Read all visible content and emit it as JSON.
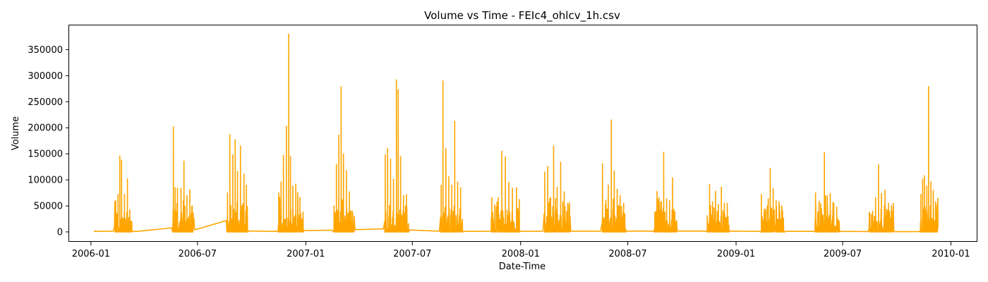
{
  "chart_data": {
    "type": "line",
    "title": "Volume vs Time - FEIc4_ohlcv_1h.csv",
    "xlabel": "Date-Time",
    "ylabel": "Volume",
    "series_color": "#ffa500",
    "grid": false,
    "legend": "none",
    "xlim": [
      "2005-11-25",
      "2010-02-15"
    ],
    "ylim": [
      -19000,
      398000
    ],
    "x_ticks": [
      "2006-01",
      "2006-07",
      "2007-01",
      "2007-07",
      "2008-01",
      "2008-07",
      "2009-01",
      "2009-07",
      "2010-01"
    ],
    "y_ticks": [
      0,
      50000,
      100000,
      150000,
      200000,
      250000,
      300000,
      350000
    ],
    "baseline": [
      [
        "2006-01-06",
        1000
      ],
      [
        "2006-02-20",
        1500
      ],
      [
        "2006-03-20",
        1000
      ],
      [
        "2006-05-20",
        8000
      ],
      [
        "2006-06-20",
        2000
      ],
      [
        "2006-08-20",
        22000
      ],
      [
        "2006-09-20",
        2000
      ],
      [
        "2006-11-01",
        1000
      ],
      [
        "2006-12-20",
        2500
      ],
      [
        "2007-03-01",
        3500
      ],
      [
        "2007-05-15",
        6000
      ],
      [
        "2007-06-20",
        4000
      ],
      [
        "2007-08-25",
        1000
      ],
      [
        "2008-06-01",
        1500
      ],
      [
        "2008-12-15",
        1500
      ],
      [
        "2009-03-01",
        1000
      ],
      [
        "2009-06-01",
        1000
      ],
      [
        "2009-11-01",
        500
      ],
      [
        "2009-11-25",
        2500
      ],
      [
        "2009-12-10",
        1500
      ]
    ],
    "bursts": [
      {
        "start": "2006-02-10",
        "end": "2006-03-12",
        "peaks": [
          [
            "2006-02-12",
            60000
          ],
          [
            "2006-02-16",
            72000
          ],
          [
            "2006-02-19",
            146000
          ],
          [
            "2006-02-22",
            138000
          ],
          [
            "2006-02-27",
            72000
          ],
          [
            "2006-03-04",
            102000
          ],
          [
            "2006-03-08",
            42000
          ]
        ]
      },
      {
        "start": "2006-05-20",
        "end": "2006-06-25",
        "peaks": [
          [
            "2006-05-21",
            202000
          ],
          [
            "2006-05-24",
            85000
          ],
          [
            "2006-05-28",
            84000
          ],
          [
            "2006-06-03",
            84000
          ],
          [
            "2006-06-08",
            136000
          ],
          [
            "2006-06-13",
            70000
          ],
          [
            "2006-06-18",
            81000
          ],
          [
            "2006-06-22",
            50000
          ]
        ]
      },
      {
        "start": "2006-08-20",
        "end": "2006-09-25",
        "peaks": [
          [
            "2006-08-21",
            75000
          ],
          [
            "2006-08-25",
            187000
          ],
          [
            "2006-08-30",
            148000
          ],
          [
            "2006-09-03",
            177000
          ],
          [
            "2006-09-07",
            116000
          ],
          [
            "2006-09-12",
            165000
          ],
          [
            "2006-09-18",
            111000
          ],
          [
            "2006-09-22",
            90000
          ]
        ]
      },
      {
        "start": "2006-11-15",
        "end": "2006-12-28",
        "peaks": [
          [
            "2006-11-16",
            75000
          ],
          [
            "2006-11-20",
            96000
          ],
          [
            "2006-11-24",
            147000
          ],
          [
            "2006-11-29",
            203000
          ],
          [
            "2006-12-03",
            380000
          ],
          [
            "2006-12-06",
            145000
          ],
          [
            "2006-12-10",
            88000
          ],
          [
            "2006-12-15",
            92000
          ],
          [
            "2006-12-22",
            66000
          ]
        ]
      },
      {
        "start": "2007-02-17",
        "end": "2007-03-25",
        "peaks": [
          [
            "2007-02-18",
            50000
          ],
          [
            "2007-02-22",
            130000
          ],
          [
            "2007-02-26",
            186000
          ],
          [
            "2007-03-02",
            279000
          ],
          [
            "2007-03-06",
            150000
          ],
          [
            "2007-03-11",
            118000
          ],
          [
            "2007-03-16",
            77000
          ],
          [
            "2007-03-21",
            40000
          ]
        ]
      },
      {
        "start": "2007-05-15",
        "end": "2007-06-25",
        "peaks": [
          [
            "2007-05-16",
            148000
          ],
          [
            "2007-05-20",
            160000
          ],
          [
            "2007-05-25",
            140000
          ],
          [
            "2007-05-30",
            101000
          ],
          [
            "2007-06-04",
            292000
          ],
          [
            "2007-06-07",
            273000
          ],
          [
            "2007-06-11",
            145000
          ],
          [
            "2007-06-16",
            70000
          ],
          [
            "2007-06-21",
            72000
          ]
        ]
      },
      {
        "start": "2007-08-18",
        "end": "2007-09-25",
        "peaks": [
          [
            "2007-08-19",
            90000
          ],
          [
            "2007-08-22",
            290000
          ],
          [
            "2007-08-27",
            160000
          ],
          [
            "2007-09-01",
            106000
          ],
          [
            "2007-09-06",
            90000
          ],
          [
            "2007-09-11",
            213000
          ],
          [
            "2007-09-16",
            96000
          ],
          [
            "2007-09-21",
            85000
          ]
        ]
      },
      {
        "start": "2007-11-12",
        "end": "2007-12-30",
        "peaks": [
          [
            "2007-11-13",
            66000
          ],
          [
            "2007-11-18",
            52000
          ],
          [
            "2007-11-24",
            66000
          ],
          [
            "2007-11-30",
            155000
          ],
          [
            "2007-12-06",
            144000
          ],
          [
            "2007-12-12",
            95000
          ],
          [
            "2007-12-18",
            84000
          ],
          [
            "2007-12-25",
            85000
          ]
        ]
      },
      {
        "start": "2008-02-10",
        "end": "2008-03-25",
        "peaks": [
          [
            "2008-02-11",
            115000
          ],
          [
            "2008-02-16",
            126000
          ],
          [
            "2008-02-21",
            66000
          ],
          [
            "2008-02-26",
            165000
          ],
          [
            "2008-03-03",
            86000
          ],
          [
            "2008-03-09",
            134000
          ],
          [
            "2008-03-15",
            77000
          ],
          [
            "2008-03-21",
            55000
          ]
        ]
      },
      {
        "start": "2008-05-18",
        "end": "2008-06-28",
        "peaks": [
          [
            "2008-05-19",
            131000
          ],
          [
            "2008-05-24",
            53000
          ],
          [
            "2008-05-29",
            90000
          ],
          [
            "2008-06-03",
            215000
          ],
          [
            "2008-06-08",
            117000
          ],
          [
            "2008-06-13",
            82000
          ],
          [
            "2008-06-18",
            70000
          ],
          [
            "2008-06-24",
            55000
          ]
        ]
      },
      {
        "start": "2008-08-15",
        "end": "2008-09-22",
        "peaks": [
          [
            "2008-08-16",
            38000
          ],
          [
            "2008-08-21",
            62000
          ],
          [
            "2008-08-26",
            58000
          ],
          [
            "2008-08-31",
            153000
          ],
          [
            "2008-09-05",
            64000
          ],
          [
            "2008-09-10",
            60000
          ],
          [
            "2008-09-15",
            104000
          ],
          [
            "2008-09-19",
            30000
          ]
        ]
      },
      {
        "start": "2008-11-12",
        "end": "2008-12-20",
        "peaks": [
          [
            "2008-11-13",
            31000
          ],
          [
            "2008-11-17",
            91000
          ],
          [
            "2008-11-22",
            58000
          ],
          [
            "2008-11-27",
            78000
          ],
          [
            "2008-12-02",
            53000
          ],
          [
            "2008-12-07",
            86000
          ],
          [
            "2008-12-12",
            55000
          ],
          [
            "2008-12-17",
            55000
          ]
        ]
      },
      {
        "start": "2009-02-12",
        "end": "2009-03-25",
        "peaks": [
          [
            "2009-02-13",
            72000
          ],
          [
            "2009-02-18",
            44000
          ],
          [
            "2009-02-23",
            50000
          ],
          [
            "2009-02-28",
            122000
          ],
          [
            "2009-03-05",
            83000
          ],
          [
            "2009-03-10",
            60000
          ],
          [
            "2009-03-15",
            58000
          ],
          [
            "2009-03-21",
            40000
          ]
        ]
      },
      {
        "start": "2009-05-15",
        "end": "2009-06-25",
        "peaks": [
          [
            "2009-05-16",
            75000
          ],
          [
            "2009-05-21",
            40000
          ],
          [
            "2009-05-26",
            45000
          ],
          [
            "2009-05-31",
            152000
          ],
          [
            "2009-06-05",
            70000
          ],
          [
            "2009-06-10",
            74000
          ],
          [
            "2009-06-16",
            55000
          ],
          [
            "2009-06-21",
            48000
          ]
        ]
      },
      {
        "start": "2009-08-15",
        "end": "2009-09-25",
        "peaks": [
          [
            "2009-08-16",
            36000
          ],
          [
            "2009-08-21",
            40000
          ],
          [
            "2009-08-26",
            66000
          ],
          [
            "2009-08-31",
            129000
          ],
          [
            "2009-09-05",
            74000
          ],
          [
            "2009-09-11",
            80000
          ],
          [
            "2009-09-17",
            55000
          ],
          [
            "2009-09-22",
            50000
          ]
        ]
      },
      {
        "start": "2009-11-10",
        "end": "2009-12-10",
        "peaks": [
          [
            "2009-11-11",
            72000
          ],
          [
            "2009-11-14",
            102000
          ],
          [
            "2009-11-17",
            108000
          ],
          [
            "2009-11-21",
            88000
          ],
          [
            "2009-11-24",
            279000
          ],
          [
            "2009-11-28",
            96000
          ],
          [
            "2009-12-02",
            80000
          ],
          [
            "2009-12-06",
            58000
          ]
        ]
      }
    ]
  }
}
